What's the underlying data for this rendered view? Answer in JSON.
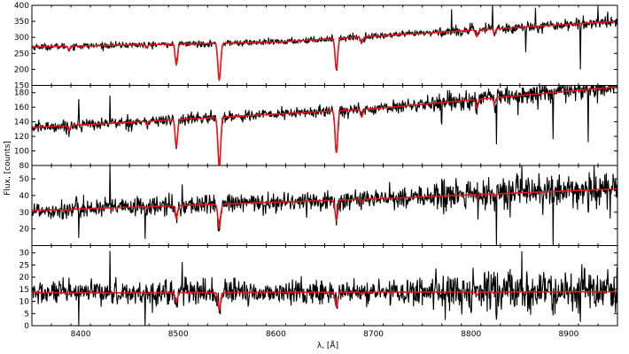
{
  "chart_data": {
    "type": "line",
    "xlabel": "λ, [Å]",
    "ylabel": "Flux, [counts]",
    "xlim": [
      8350,
      8950
    ],
    "xticks": [
      8400,
      8500,
      8600,
      8700,
      8800,
      8900
    ],
    "grid": false,
    "colors": {
      "observed": "#000000",
      "model": "#e8141b"
    },
    "absorption_lines": [
      {
        "center": 8498,
        "width": 1.2,
        "weight": 0.55
      },
      {
        "center": 8542,
        "width": 1.4,
        "weight": 1.0
      },
      {
        "center": 8662,
        "width": 1.3,
        "weight": 0.85
      },
      {
        "center": 8388,
        "width": 1.0,
        "weight": 0.1
      },
      {
        "center": 8468,
        "width": 1.0,
        "weight": 0.08
      },
      {
        "center": 8688,
        "width": 1.2,
        "weight": 0.15
      },
      {
        "center": 8806,
        "width": 1.2,
        "weight": 0.18
      },
      {
        "center": 8824,
        "width": 1.0,
        "weight": 0.12
      }
    ],
    "panels": [
      {
        "ylim": [
          150,
          400
        ],
        "yticks": [
          150,
          200,
          250,
          300,
          350,
          400
        ],
        "continuum": [
          [
            8350,
            270
          ],
          [
            8600,
            285
          ],
          [
            8950,
            350
          ]
        ],
        "depth": 115,
        "noise": 5,
        "spikes": [
          [
            8780,
            60
          ],
          [
            8822,
            70
          ],
          [
            8856,
            -90
          ],
          [
            8866,
            50
          ],
          [
            8912,
            -150
          ],
          [
            8930,
            40
          ],
          [
            8940,
            30
          ]
        ]
      },
      {
        "ylim": [
          80,
          190
        ],
        "yticks": [
          80,
          100,
          120,
          140,
          160,
          180
        ],
        "continuum": [
          [
            8350,
            132
          ],
          [
            8700,
            158
          ],
          [
            8950,
            188
          ]
        ],
        "depth": 68,
        "noise": 4,
        "spikes": [
          [
            8398,
            40
          ],
          [
            8430,
            38
          ],
          [
            8770,
            -30
          ],
          [
            8776,
            25
          ],
          [
            8826,
            -70
          ],
          [
            8848,
            -35
          ],
          [
            8884,
            -60
          ],
          [
            8920,
            -75
          ],
          [
            8944,
            20
          ]
        ]
      },
      {
        "ylim": [
          10,
          58
        ],
        "yticks": [
          20,
          30,
          40,
          50
        ],
        "continuum": [
          [
            8350,
            31
          ],
          [
            8700,
            38
          ],
          [
            8950,
            44
          ]
        ],
        "depth": 14,
        "noise": 3,
        "spikes": [
          [
            8398,
            -18
          ],
          [
            8403,
            12
          ],
          [
            8430,
            25
          ],
          [
            8466,
            -12
          ],
          [
            8504,
            10
          ],
          [
            8826,
            -40
          ],
          [
            8852,
            16
          ],
          [
            8884,
            -35
          ],
          [
            8920,
            -20
          ],
          [
            8926,
            12
          ]
        ]
      },
      {
        "ylim": [
          0,
          33
        ],
        "yticks": [
          0,
          5,
          10,
          15,
          20,
          25,
          30
        ],
        "continuum": [
          [
            8350,
            13.5
          ],
          [
            8950,
            14
          ]
        ],
        "depth": 7,
        "noise": 2.5,
        "spikes": [
          [
            8398,
            -14
          ],
          [
            8430,
            16
          ],
          [
            8466,
            -12
          ],
          [
            8504,
            14
          ],
          [
            8626,
            10
          ],
          [
            8764,
            20
          ],
          [
            8790,
            -14
          ],
          [
            8826,
            -14
          ],
          [
            8852,
            20
          ],
          [
            8886,
            -14
          ],
          [
            8912,
            -13
          ],
          [
            8940,
            14
          ]
        ]
      }
    ]
  }
}
